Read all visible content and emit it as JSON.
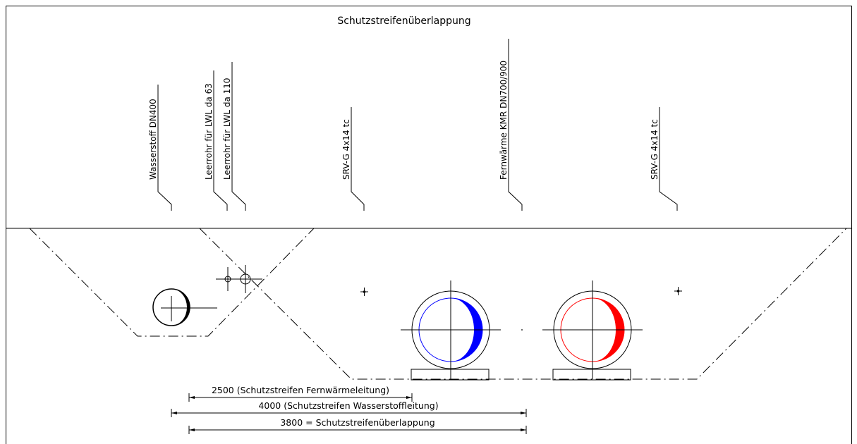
{
  "title": "Schutzstreifenüberlappung",
  "colors": {
    "fernwaerme_return": "#0000ff",
    "fernwaerme_supply": "#ff0000",
    "lines": "#000000"
  },
  "labels": {
    "wasserstoff": "Wasserstoff DN400",
    "leerrohr_63": "Leerrohr für LWL da 63",
    "leerrohr_110": "Leerrohr für LWL da 110",
    "srv_left": "SRV-G 4x14 tc",
    "fernwaerme": "Fernwärme KMR DN700/900",
    "srv_right": "SRV-G 4x14 tc"
  },
  "dimensions": {
    "fernwaerme": "2500 (Schutzstreifen Fernwärmeleitung)",
    "wasserstoff": "4000 (Schutzstreifen Wasserstoffleitung)",
    "overlap": "3800 = Schutzstreifenüberlappung"
  }
}
